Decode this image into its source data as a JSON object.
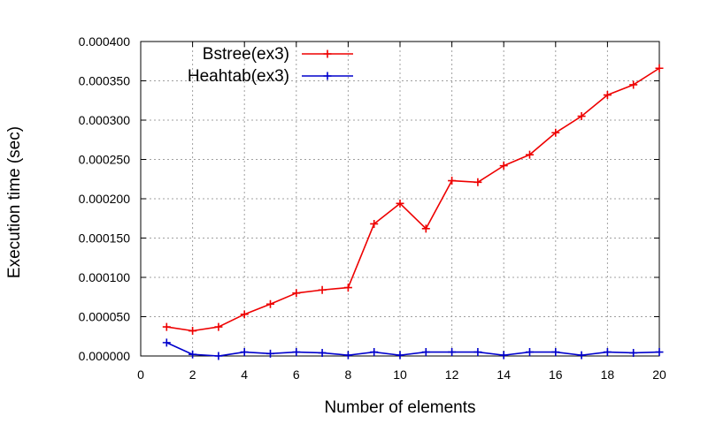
{
  "chart_data": {
    "type": "line",
    "title": "",
    "xlabel": "Number of elements",
    "ylabel": "Execution time (sec)",
    "xlim": [
      0,
      20
    ],
    "ylim": [
      0,
      0.0004
    ],
    "xticks": [
      0,
      2,
      4,
      6,
      8,
      10,
      12,
      14,
      16,
      18,
      20
    ],
    "xtick_labels": [
      "0",
      "2",
      "4",
      "6",
      "8",
      "10",
      "12",
      "14",
      "16",
      "18",
      "20"
    ],
    "yticks": [
      0,
      5e-05,
      0.0001,
      0.00015,
      0.0002,
      0.00025,
      0.0003,
      0.00035,
      0.0004
    ],
    "ytick_labels": [
      "0.000000",
      "0.000050",
      "0.000100",
      "0.000150",
      "0.000200",
      "0.000250",
      "0.000300",
      "0.000350",
      "0.000400"
    ],
    "grid": true,
    "legend_position": "top-left",
    "x": [
      1,
      2,
      3,
      4,
      5,
      6,
      7,
      8,
      9,
      10,
      11,
      12,
      13,
      14,
      15,
      16,
      17,
      18,
      19,
      20
    ],
    "series": [
      {
        "name": "Bstree(ex3)",
        "color": "#ee0000",
        "marker": "plus",
        "values": [
          3.7e-05,
          3.2e-05,
          3.7e-05,
          5.3e-05,
          6.6e-05,
          8e-05,
          8.4e-05,
          8.7e-05,
          0.000168,
          0.000194,
          0.000162,
          0.000223,
          0.000221,
          0.000242,
          0.000256,
          0.000284,
          0.000305,
          0.000332,
          0.000345,
          0.000366
        ]
      },
      {
        "name": "Heahtab(ex3)",
        "color": "#0000cc",
        "marker": "plus",
        "values": [
          1.7e-05,
          2e-06,
          0.0,
          5e-06,
          3e-06,
          5e-06,
          4e-06,
          1e-06,
          5e-06,
          1e-06,
          5e-06,
          5e-06,
          5e-06,
          1e-06,
          5e-06,
          5e-06,
          1e-06,
          5e-06,
          4e-06,
          5e-06
        ]
      }
    ]
  }
}
